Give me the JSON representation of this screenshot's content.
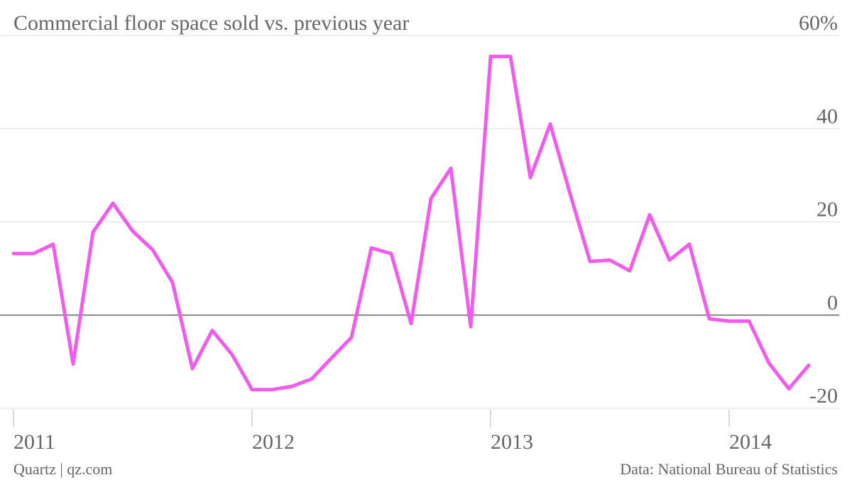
{
  "chart_data": {
    "type": "line",
    "title": "Commercial floor space sold vs. previous year",
    "source_left": "Quartz | qz.com",
    "source_right": "Data: National Bureau of Statistics",
    "categories": [
      "2011",
      null,
      null,
      null,
      null,
      null,
      null,
      null,
      null,
      null,
      null,
      null,
      "2012",
      null,
      null,
      null,
      null,
      null,
      null,
      null,
      null,
      null,
      null,
      null,
      "2013",
      null,
      null,
      null,
      null,
      null,
      null,
      null,
      null,
      null,
      null,
      null,
      "2014",
      null,
      null,
      null,
      null
    ],
    "series": [
      {
        "name": "Commercial floor space sold",
        "color": "#f05cec",
        "values": [
          13.2,
          13.2,
          15.2,
          -10.5,
          17.8,
          24,
          18,
          14,
          7,
          -11.5,
          -3.3,
          -8.5,
          -16,
          -16,
          -15.3,
          -13.7,
          -9.2,
          -4.8,
          14.4,
          13.2,
          -1.8,
          25,
          31.5,
          -2.5,
          55.5,
          55.5,
          29.5,
          41,
          26,
          11.5,
          11.8,
          9.5,
          21.5,
          11.8,
          15.2,
          -0.8,
          -1.3,
          -1.3,
          -10.3,
          -15.8,
          -10.8
        ]
      }
    ],
    "ylim": [
      -20,
      60
    ],
    "yticks": [
      -20,
      0,
      20,
      40,
      {
        "value": 60,
        "label": "60%"
      }
    ],
    "grid": true
  }
}
